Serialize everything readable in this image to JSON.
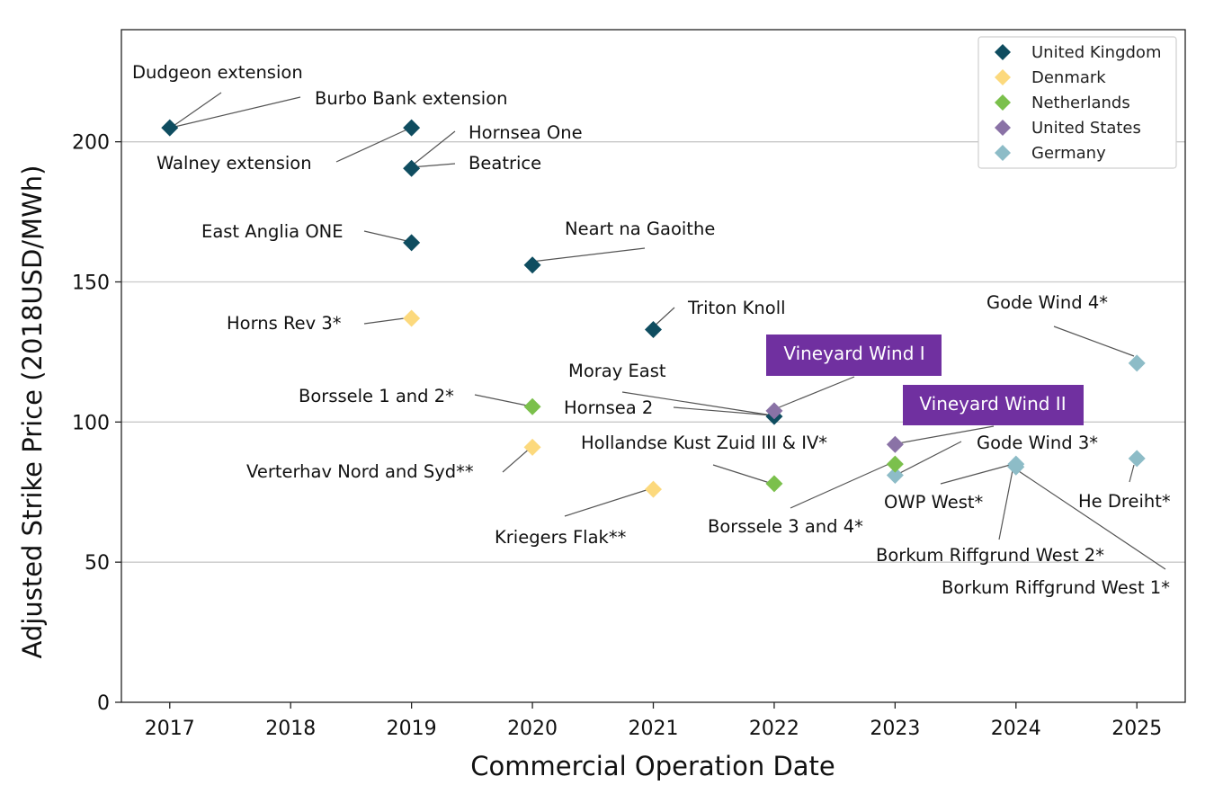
{
  "chart_data": {
    "type": "scatter",
    "title": "",
    "xlabel": "Commercial Operation Date",
    "ylabel": "Adjusted Strike Price (2018USD/MWh)",
    "xlim": [
      2016.6,
      2025.4
    ],
    "ylim": [
      0,
      240
    ],
    "x_ticks": [
      2017,
      2018,
      2019,
      2020,
      2021,
      2022,
      2023,
      2024,
      2025
    ],
    "y_ticks": [
      0,
      50,
      100,
      150,
      200
    ],
    "grid": "horizontal lines at 50, 100, 150, 200",
    "legend_position": "top-right",
    "legend": [
      {
        "name": "United Kingdom",
        "color": "#0f4d60"
      },
      {
        "name": "Denmark",
        "color": "#fcd97d"
      },
      {
        "name": "Netherlands",
        "color": "#7bc04c"
      },
      {
        "name": "United States",
        "color": "#8a72a6"
      },
      {
        "name": "Germany",
        "color": "#8dbcc7"
      }
    ],
    "points": [
      {
        "label": "Dudgeon extension",
        "country": "United Kingdom",
        "x": 2017,
        "y": 205
      },
      {
        "label": "Burbo Bank extension",
        "country": "United Kingdom",
        "x": 2017,
        "y": 205
      },
      {
        "label": "Walney extension",
        "country": "United Kingdom",
        "x": 2019,
        "y": 205
      },
      {
        "label": "Hornsea One",
        "country": "United Kingdom",
        "x": 2019,
        "y": 190.5
      },
      {
        "label": "Beatrice",
        "country": "United Kingdom",
        "x": 2019,
        "y": 190.5
      },
      {
        "label": "East Anglia ONE",
        "country": "United Kingdom",
        "x": 2019,
        "y": 164
      },
      {
        "label": "Neart na Gaoithe",
        "country": "United Kingdom",
        "x": 2020,
        "y": 156
      },
      {
        "label": "Triton Knoll",
        "country": "United Kingdom",
        "x": 2021,
        "y": 133
      },
      {
        "label": "Moray East",
        "country": "United Kingdom",
        "x": 2022,
        "y": 102
      },
      {
        "label": "Hornsea 2",
        "country": "United Kingdom",
        "x": 2022,
        "y": 102
      },
      {
        "label": "Horns Rev 3*",
        "country": "Denmark",
        "x": 2019,
        "y": 137
      },
      {
        "label": "Verterhav Nord and Syd**",
        "country": "Denmark",
        "x": 2020,
        "y": 91
      },
      {
        "label": "Kriegers Flak**",
        "country": "Denmark",
        "x": 2021,
        "y": 76
      },
      {
        "label": "Borssele 1 and 2*",
        "country": "Netherlands",
        "x": 2020,
        "y": 105.5
      },
      {
        "label": "Hollandse Kust Zuid III & IV*",
        "country": "Netherlands",
        "x": 2022,
        "y": 78
      },
      {
        "label": "Borssele 3 and 4*",
        "country": "Netherlands",
        "x": 2023,
        "y": 85
      },
      {
        "label": "Vineyard Wind I",
        "country": "United States",
        "x": 2022,
        "y": 104
      },
      {
        "label": "Vineyard Wind II",
        "country": "United States",
        "x": 2023,
        "y": 92
      },
      {
        "label": "Gode Wind 4*",
        "country": "Germany",
        "x": 2025,
        "y": 121
      },
      {
        "label": "He Dreiht*",
        "country": "Germany",
        "x": 2025,
        "y": 87
      },
      {
        "label": "Gode Wind 3*",
        "country": "Germany",
        "x": 2023,
        "y": 81
      },
      {
        "label": "OWP West*",
        "country": "Germany",
        "x": 2024,
        "y": 85
      },
      {
        "label": "Borkum Riffgrund West 2*",
        "country": "Germany",
        "x": 2024,
        "y": 84
      },
      {
        "label": "Borkum Riffgrund West 1*",
        "country": "Germany",
        "x": 2024,
        "y": 84
      }
    ],
    "highlighted_labels": [
      "Vineyard Wind I",
      "Vineyard Wind II"
    ],
    "highlight_color": "#7030a0"
  }
}
